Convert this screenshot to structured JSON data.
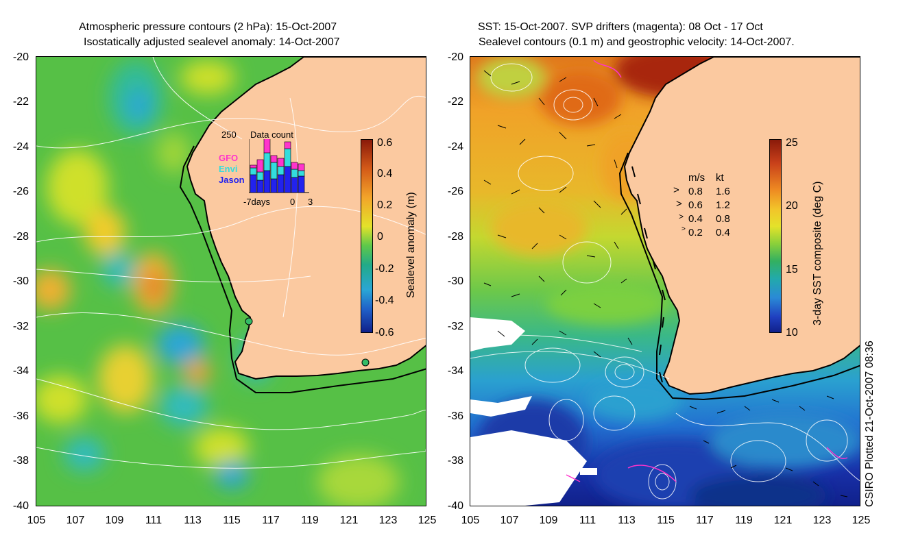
{
  "left_panel": {
    "title_line1": "Atmospheric pressure contours (2 hPa): 15-Oct-2007",
    "title_line2": "Isostatically adjusted sealevel anomaly: 14-Oct-2007",
    "y_ticks": [
      "-20",
      "-22",
      "-24",
      "-26",
      "-28",
      "-30",
      "-32",
      "-34",
      "-36",
      "-38",
      "-40"
    ],
    "x_ticks": [
      "105",
      "107",
      "109",
      "111",
      "113",
      "115",
      "117",
      "119",
      "121",
      "123",
      "125"
    ],
    "colorbar": {
      "label": "Sealevel anomaly (m)",
      "ticks": [
        "0.6",
        "0.4",
        "0.2",
        "0",
        "-0.2",
        "-0.4",
        "-0.6"
      ],
      "range": [
        -0.6,
        0.6
      ]
    },
    "inset": {
      "max_label": "250",
      "title": "Data count",
      "sat_gfo": "GFO",
      "sat_envi": "Envi",
      "sat_jason": "Jason",
      "x_left": "-7days",
      "x_mid": "0",
      "x_right": "3",
      "colors": {
        "gfo": "#ff33cc",
        "envi": "#33dddd",
        "jason": "#2222ee"
      }
    }
  },
  "right_panel": {
    "title_line1": "SST: 15-Oct-2007. SVP drifters (magenta): 08 Oct - 17 Oct",
    "title_line2": "Sealevel contours (0.1 m) and geostrophic velocity: 14-Oct-2007.",
    "y_ticks": [
      "-20",
      "-22",
      "-24",
      "-26",
      "-28",
      "-30",
      "-32",
      "-34",
      "-36",
      "-38",
      "-40"
    ],
    "x_ticks": [
      "105",
      "107",
      "109",
      "111",
      "113",
      "115",
      "117",
      "119",
      "121",
      "123",
      "125"
    ],
    "colorbar": {
      "label": "3-day SST composite (deg C)",
      "ticks": [
        "25",
        "20",
        "15",
        "10"
      ],
      "range": [
        10,
        25
      ]
    },
    "velocity_legend": {
      "header_ms": "m/s",
      "header_kt": "kt",
      "rows": [
        {
          "ms": "0.8",
          "kt": "1.6"
        },
        {
          "ms": "0.6",
          "kt": "1.2"
        },
        {
          "ms": "0.4",
          "kt": "0.8"
        },
        {
          "ms": "0.2",
          "kt": "0.4"
        }
      ]
    }
  },
  "credit": "CSIRO Plotted 21-Oct-2007 08:36",
  "colors": {
    "land": "#fbc9a0",
    "coast": "#000000",
    "contour": "#ffffff",
    "drifter": "#ff33cc"
  }
}
